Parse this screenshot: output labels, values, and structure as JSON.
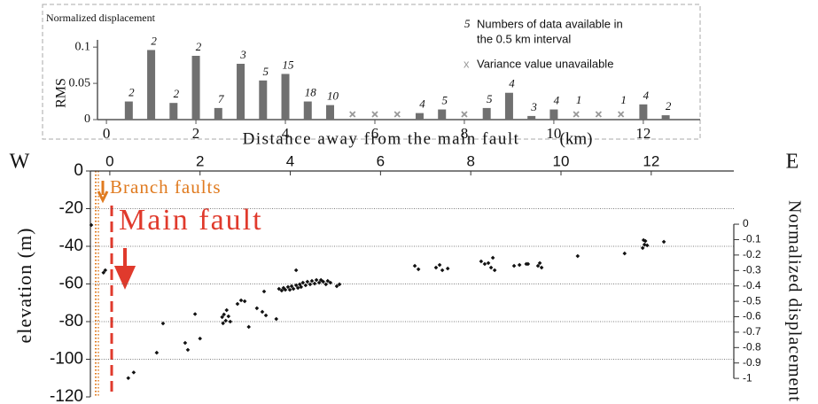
{
  "chart_data": [
    {
      "type": "bar",
      "title": "Normalized displacement",
      "ylabel": "RMS",
      "xlabel": "Distance away from the main fault",
      "xunit": "(km)",
      "x": [
        0.5,
        1,
        1.5,
        2,
        2.5,
        3,
        3.5,
        4,
        4.5,
        5,
        5.5,
        6,
        6.5,
        7,
        7.5,
        8,
        8.5,
        9,
        9.5,
        10,
        10.5,
        11,
        11.5,
        12,
        12.5
      ],
      "values": [
        0.025,
        0.096,
        0.023,
        0.088,
        0.016,
        0.077,
        0.054,
        0.063,
        0.025,
        0.02,
        null,
        null,
        null,
        0.009,
        0.014,
        null,
        0.016,
        0.037,
        0.005,
        0.014,
        null,
        null,
        null,
        0.021,
        0.006
      ],
      "counts": [
        2,
        2,
        2,
        2,
        7,
        3,
        5,
        15,
        18,
        10,
        null,
        null,
        null,
        4,
        5,
        null,
        5,
        4,
        3,
        4,
        1,
        null,
        1,
        4,
        2
      ],
      "color": "#707070",
      "unavailable_color": "#999999",
      "xlim": [
        -0.2,
        13.27
      ],
      "xticks": [
        0,
        2,
        4,
        6,
        8,
        10,
        12
      ],
      "ylim": [
        0,
        0.11
      ],
      "yticks": [
        0,
        0.05,
        0.1
      ],
      "legend": [
        {
          "symbol": "5",
          "label": "Numbers of data available in",
          "label2": "the 0.5 km interval"
        },
        {
          "symbol": "x",
          "label": "Variance value unavailable"
        }
      ]
    },
    {
      "type": "scatter",
      "ylabel": "elevation (m)",
      "y2label": "Normalized displacement",
      "left_label": "W",
      "right_label": "E",
      "annotations": [
        "Branch faults",
        "Main fault"
      ],
      "x": [
        -0.41,
        -0.14,
        -0.1,
        0.41,
        0.53,
        1.04,
        1.18,
        1.67,
        1.73,
        1.89,
        2.0,
        2.49,
        2.53,
        2.57,
        2.59,
        2.63,
        2.67,
        2.51,
        2.83,
        2.91,
        2.99,
        3.08,
        3.26,
        3.38,
        3.46,
        3.42,
        3.69,
        4.13,
        3.75,
        3.81,
        3.85,
        3.89,
        3.95,
        3.99,
        4.03,
        4.07,
        4.13,
        4.17,
        4.21,
        4.24,
        4.28,
        4.34,
        4.38,
        4.44,
        4.48,
        4.54,
        4.58,
        4.64,
        4.68,
        4.73,
        4.79,
        4.83,
        4.89,
        5.03,
        5.09,
        6.76,
        6.84,
        7.23,
        7.31,
        7.37,
        7.49,
        8.23,
        8.31,
        8.39,
        8.45,
        8.49,
        8.53,
        8.96,
        9.08,
        9.23,
        9.27,
        9.49,
        9.53,
        9.57,
        10.37,
        11.41,
        11.81,
        11.85,
        11.87,
        11.91,
        11.83,
        12.28
      ],
      "y": [
        -28.7,
        -54,
        -52.7,
        -110,
        -107,
        -96.5,
        -81,
        -91.3,
        -95,
        -76,
        -89,
        -77.6,
        -76.2,
        -79.5,
        -73.9,
        -77.2,
        -80,
        -80.9,
        -70.6,
        -68.7,
        -69.2,
        -82.8,
        -72.9,
        -74.8,
        -76.7,
        -64,
        -78.6,
        -52.7,
        -62.6,
        -63.5,
        -62.1,
        -63.1,
        -61.6,
        -63.1,
        -61.2,
        -62.6,
        -60.7,
        -62.1,
        -60.2,
        -61.6,
        -59.3,
        -60.7,
        -58.8,
        -60.2,
        -58.4,
        -59.8,
        -57.9,
        -59.3,
        -57.9,
        -58.8,
        -60.2,
        -58.4,
        -59.3,
        -61.2,
        -60.2,
        -50.4,
        -52.2,
        -51.3,
        -49.9,
        -52.7,
        -51.8,
        -48,
        -49.4,
        -48.9,
        -51.3,
        -46.1,
        -52.7,
        -50.4,
        -49.9,
        -49.4,
        -49.4,
        -50.4,
        -48.9,
        -51.3,
        -45.2,
        -43.8,
        -40.9,
        -39.1,
        -37.2,
        -39.5,
        -36.7,
        -37.6
      ],
      "color": "#111111",
      "xlim": [
        -0.43,
        13.83
      ],
      "xticks": [
        0,
        2,
        4,
        6,
        8,
        10,
        12
      ],
      "ylim": [
        -120,
        0
      ],
      "yticks": [
        0,
        -20,
        -40,
        -60,
        -80,
        -100,
        -120
      ],
      "grid": true,
      "y2lim": [
        -1.12,
        0.345
      ],
      "y2ticks": [
        0,
        -0.1,
        -0.2,
        -0.3,
        -0.4,
        -0.5,
        -0.6,
        -0.7,
        -0.8,
        -0.9,
        -1
      ]
    }
  ]
}
